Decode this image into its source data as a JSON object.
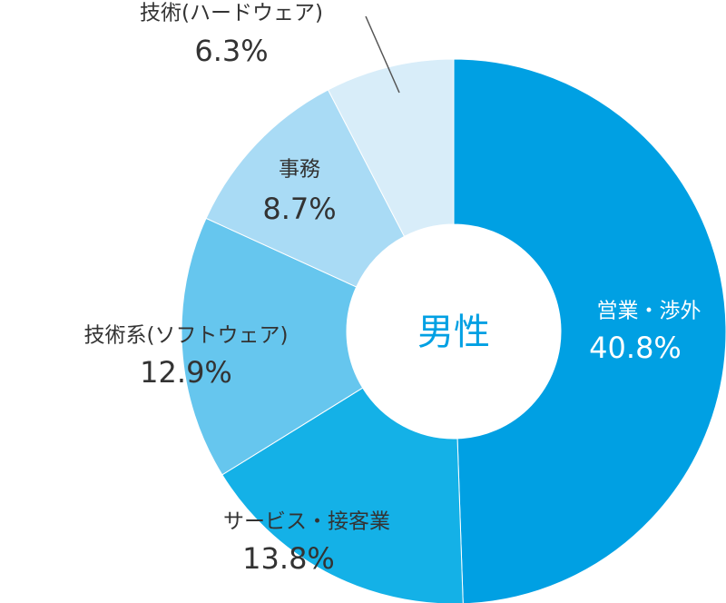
{
  "chart_data": {
    "type": "donut",
    "center_text": "男性",
    "categories": [
      "営業・渉外",
      "サービス・接客業",
      "技術系(ソフトウェア)",
      "事務",
      "技術(ハードウェア)"
    ],
    "values": [
      40.8,
      13.8,
      12.9,
      8.7,
      6.3
    ],
    "value_labels": [
      "40.8%",
      "13.8%",
      "12.9%",
      "8.7%",
      "6.3%"
    ],
    "colors": [
      "#00a0e3",
      "#14b1e7",
      "#66c6ee",
      "#a9dbf5",
      "#d8edf9"
    ]
  }
}
